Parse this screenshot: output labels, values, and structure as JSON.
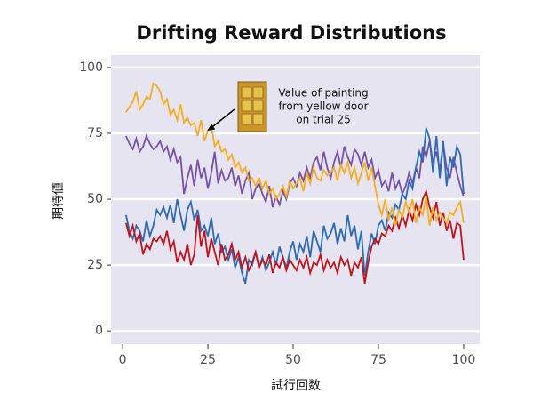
{
  "chart_data": {
    "type": "line",
    "title": "Drifting Reward Distributions",
    "x_label": "試行回数",
    "y_label": "期待値",
    "annotation": [
      "Value of painting",
      "from yellow door",
      "on trial 25"
    ],
    "annotation_point": [
      24,
      76
    ],
    "x": [
      1,
      2,
      3,
      4,
      5,
      6,
      7,
      8,
      9,
      10,
      11,
      12,
      13,
      14,
      15,
      16,
      17,
      18,
      19,
      20,
      21,
      22,
      23,
      24,
      25,
      26,
      27,
      28,
      29,
      30,
      31,
      32,
      33,
      34,
      35,
      36,
      37,
      38,
      39,
      40,
      41,
      42,
      43,
      44,
      45,
      46,
      47,
      48,
      49,
      50,
      51,
      52,
      53,
      54,
      55,
      56,
      57,
      58,
      59,
      60,
      61,
      62,
      63,
      64,
      65,
      66,
      67,
      68,
      69,
      70,
      71,
      72,
      73,
      74,
      75,
      76,
      77,
      78,
      79,
      80,
      81,
      82,
      83,
      84,
      85,
      86,
      87,
      88,
      89,
      90,
      91,
      92,
      93,
      94,
      95,
      96,
      97,
      98,
      99,
      100
    ],
    "series": [
      {
        "color": "#f5ae22",
        "values": [
          83,
          85,
          87,
          91,
          84,
          86,
          89,
          88,
          94,
          93,
          91,
          86,
          88,
          82,
          84,
          80,
          86,
          79,
          81,
          78,
          79,
          74,
          80,
          72,
          76,
          78,
          70,
          72,
          68,
          69,
          65,
          67,
          62,
          64,
          60,
          62,
          57,
          58,
          55,
          58,
          54,
          57,
          52,
          54,
          50,
          52,
          55,
          51,
          57,
          54,
          56,
          58,
          53,
          60,
          56,
          62,
          58,
          57,
          61,
          59,
          60,
          62,
          57,
          63,
          60,
          64,
          58,
          62,
          56,
          60,
          64,
          57,
          62,
          55,
          48,
          44,
          50,
          42,
          47,
          40,
          46,
          43,
          49,
          45,
          50,
          41,
          47,
          44,
          51,
          40,
          47,
          42,
          45,
          43,
          41,
          45,
          44,
          47,
          49,
          41
        ]
      },
      {
        "color": "#7651a8",
        "values": [
          74,
          71,
          69,
          73,
          68,
          70,
          74,
          71,
          69,
          70,
          72,
          68,
          70,
          65,
          69,
          64,
          66,
          52,
          58,
          63,
          55,
          65,
          58,
          62,
          54,
          60,
          68,
          56,
          61,
          57,
          58,
          62,
          55,
          59,
          52,
          57,
          60,
          50,
          54,
          56,
          52,
          49,
          55,
          47,
          51,
          48,
          53,
          50,
          56,
          58,
          55,
          60,
          57,
          62,
          58,
          64,
          66,
          61,
          68,
          62,
          58,
          64,
          68,
          62,
          70,
          66,
          63,
          69,
          67,
          63,
          68,
          62,
          65,
          58,
          61,
          55,
          57,
          53,
          60,
          54,
          57,
          52,
          55,
          60,
          56,
          62,
          58,
          70,
          66,
          72,
          64,
          68,
          61,
          71,
          62,
          58,
          66,
          60,
          55,
          51
        ]
      },
      {
        "color": "#2c6bb3",
        "values": [
          44,
          38,
          35,
          40,
          38,
          34,
          42,
          36,
          40,
          46,
          44,
          47,
          43,
          48,
          41,
          50,
          44,
          38,
          46,
          49,
          42,
          46,
          38,
          40,
          36,
          43,
          33,
          37,
          30,
          32,
          27,
          31,
          24,
          28,
          22,
          18,
          27,
          25,
          30,
          24,
          28,
          23,
          26,
          30,
          25,
          32,
          28,
          24,
          30,
          34,
          27,
          33,
          30,
          36,
          28,
          38,
          34,
          30,
          40,
          35,
          37,
          41,
          33,
          39,
          34,
          44,
          36,
          40,
          31,
          38,
          21,
          30,
          37,
          33,
          40,
          42,
          38,
          45,
          43,
          48,
          46,
          52,
          50,
          57,
          54,
          62,
          68,
          64,
          77,
          73,
          60,
          74,
          58,
          72,
          55,
          66,
          62,
          70,
          67,
          52
        ]
      },
      {
        "color": "#c1121c",
        "values": [
          41,
          36,
          40,
          34,
          37,
          29,
          33,
          31,
          35,
          34,
          36,
          33,
          38,
          31,
          34,
          26,
          30,
          27,
          33,
          25,
          29,
          44,
          32,
          38,
          28,
          35,
          30,
          25,
          33,
          27,
          29,
          33,
          27,
          30,
          24,
          28,
          23,
          26,
          30,
          24,
          27,
          25,
          29,
          22,
          26,
          24,
          28,
          23,
          27,
          25,
          23,
          27,
          24,
          28,
          22,
          26,
          25,
          29,
          23,
          27,
          24,
          26,
          22,
          28,
          25,
          27,
          21,
          26,
          24,
          28,
          18,
          26,
          32,
          35,
          33,
          37,
          36,
          40,
          38,
          43,
          39,
          44,
          40,
          46,
          42,
          48,
          44,
          50,
          53,
          47,
          43,
          49,
          40,
          45,
          38,
          42,
          35,
          41,
          40,
          27
        ]
      }
    ],
    "xlim": [
      -3.4,
      104.7
    ],
    "ylim": [
      -5,
      104.7
    ],
    "xticks": [
      0,
      25,
      50,
      75,
      100
    ],
    "yticks": [
      0,
      25,
      50,
      75,
      100
    ],
    "grid": true,
    "background": "#e6e4f1"
  }
}
